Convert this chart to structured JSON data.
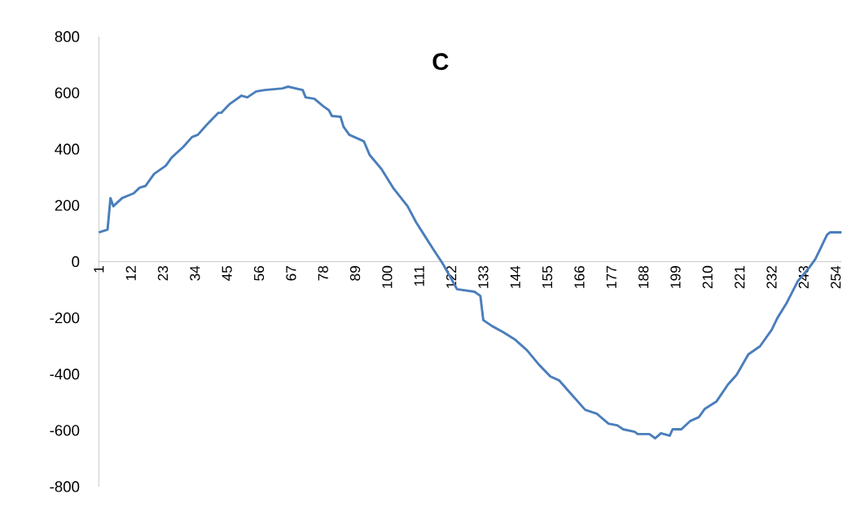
{
  "chart_data": {
    "type": "line",
    "title": "C",
    "x": [
      1,
      4,
      5,
      6,
      9,
      13,
      15,
      17,
      20,
      24,
      26,
      30,
      33,
      35,
      38,
      42,
      43,
      46,
      50,
      52,
      55,
      58,
      64,
      66,
      71,
      72,
      75,
      78,
      80,
      81,
      84,
      85,
      87,
      92,
      94,
      98,
      102,
      107,
      110,
      113,
      116,
      119,
      124,
      130,
      132,
      133,
      136,
      140,
      144,
      148,
      152,
      156,
      159,
      163,
      168,
      172,
      176,
      179,
      181,
      185,
      186,
      190,
      192,
      194,
      197,
      198,
      201,
      204,
      207,
      209,
      213,
      217,
      220,
      224,
      228,
      232,
      234,
      237,
      241,
      245,
      247,
      249,
      251,
      252,
      256
    ],
    "values": [
      104,
      114,
      226,
      197,
      226,
      243,
      263,
      269,
      312,
      341,
      370,
      408,
      443,
      451,
      486,
      529,
      529,
      561,
      590,
      584,
      605,
      610,
      616,
      622,
      610,
      584,
      579,
      553,
      538,
      518,
      515,
      480,
      451,
      428,
      379,
      330,
      263,
      197,
      139,
      90,
      41,
      -6,
      -98,
      -107,
      -122,
      -208,
      -229,
      -252,
      -278,
      -315,
      -365,
      -408,
      -422,
      -469,
      -527,
      -541,
      -576,
      -582,
      -596,
      -605,
      -613,
      -613,
      -628,
      -610,
      -619,
      -596,
      -596,
      -567,
      -553,
      -524,
      -498,
      -437,
      -402,
      -330,
      -301,
      -243,
      -200,
      -150,
      -69,
      -20,
      9,
      52,
      95,
      104,
      104
    ],
    "color": "#4a7ebb",
    "marker": "none",
    "line_style": "solid",
    "xlim": [
      1,
      256
    ],
    "xticks": [
      1,
      12,
      23,
      34,
      45,
      56,
      67,
      78,
      89,
      100,
      111,
      122,
      133,
      144,
      155,
      166,
      177,
      188,
      199,
      210,
      221,
      232,
      243,
      254
    ],
    "ylim": [
      -800,
      800
    ],
    "yticks": [
      -800,
      -600,
      -400,
      -200,
      0,
      200,
      400,
      600,
      800
    ]
  }
}
